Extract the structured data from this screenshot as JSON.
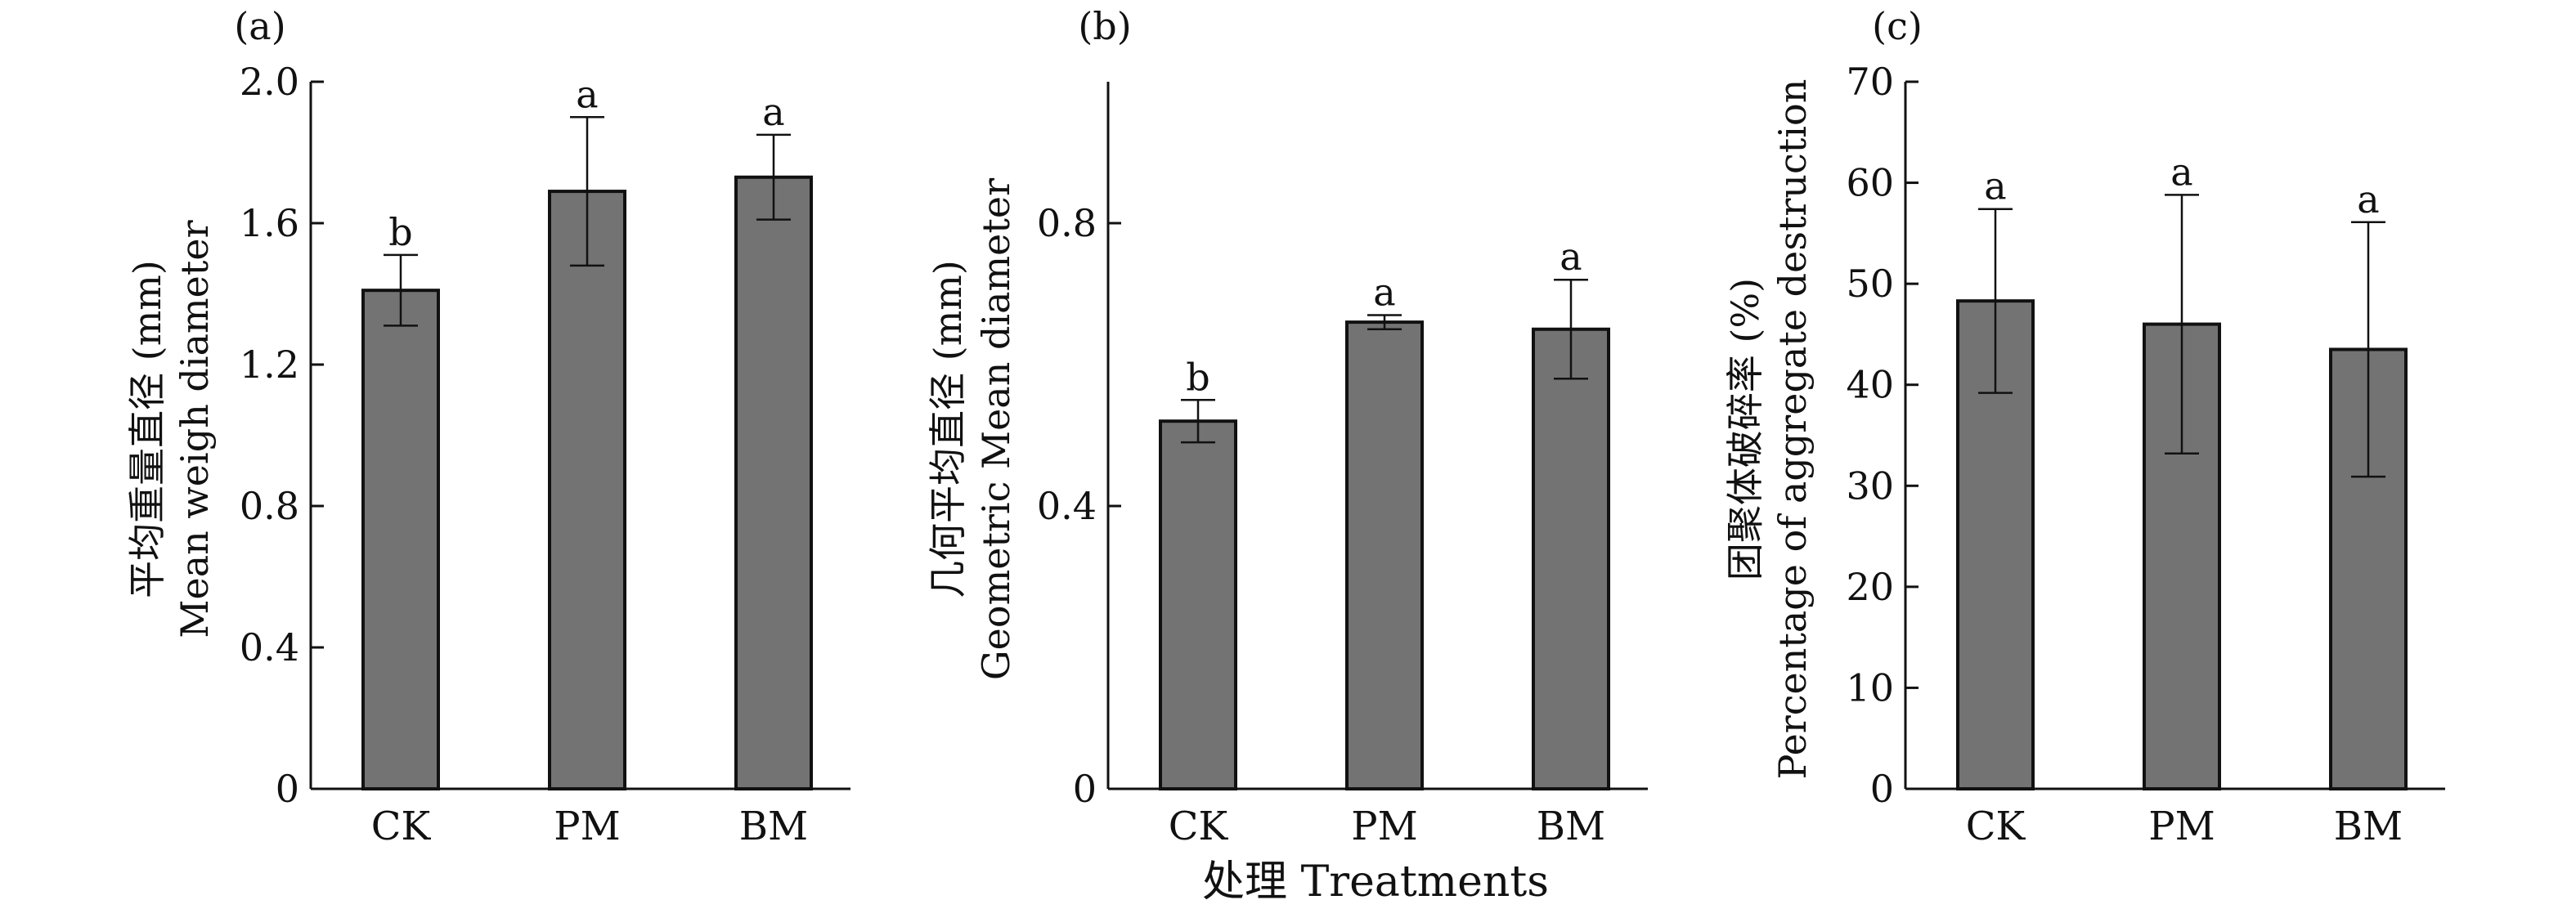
{
  "figure": {
    "shared_xlabel": "处理 Treatments"
  },
  "chart_data": [
    {
      "type": "bar",
      "panel_label": "(a)",
      "ylabel_cn": "平均重量直径 (mm)",
      "ylabel_en": "Mean weigh diameter",
      "categories": [
        "CK",
        "PM",
        "BM"
      ],
      "values": [
        1.41,
        1.69,
        1.73
      ],
      "errors": [
        0.1,
        0.21,
        0.12
      ],
      "significance": [
        "b",
        "a",
        "a"
      ],
      "ylim": [
        0,
        2.0
      ],
      "yticks": [
        0,
        0.4,
        0.8,
        1.2,
        1.6,
        2.0
      ],
      "ytick_labels": [
        "0",
        "0.4",
        "0.8",
        "1.2",
        "1.6",
        "2.0"
      ]
    },
    {
      "type": "bar",
      "panel_label": "(b)",
      "ylabel_cn": "几何平均直径 (mm)",
      "ylabel_en": "Geometric Mean diameter",
      "categories": [
        "CK",
        "PM",
        "BM"
      ],
      "values": [
        0.52,
        0.66,
        0.65
      ],
      "errors": [
        0.03,
        0.01,
        0.07
      ],
      "significance": [
        "b",
        "a",
        "a"
      ],
      "ylim": [
        0,
        1.0
      ],
      "yticks": [
        0,
        0.4,
        0.8
      ],
      "ytick_labels": [
        "0",
        "0.4",
        "0.8"
      ]
    },
    {
      "type": "bar",
      "panel_label": "(c)",
      "ylabel_cn": "团聚体破碎率 (%)",
      "ylabel_en": "Percentage of aggregate destruction",
      "categories": [
        "CK",
        "PM",
        "BM"
      ],
      "values": [
        48.3,
        46.0,
        43.5
      ],
      "errors": [
        9.1,
        12.8,
        12.6
      ],
      "significance": [
        "a",
        "a",
        "a"
      ],
      "ylim": [
        0,
        70
      ],
      "yticks": [
        0,
        10,
        20,
        30,
        40,
        50,
        60,
        70
      ],
      "ytick_labels": [
        "0",
        "10",
        "20",
        "30",
        "40",
        "50",
        "60",
        "70"
      ]
    }
  ],
  "colors": {
    "bar_fill": "#737373",
    "bar_stroke": "#111111",
    "axis": "#111111"
  }
}
